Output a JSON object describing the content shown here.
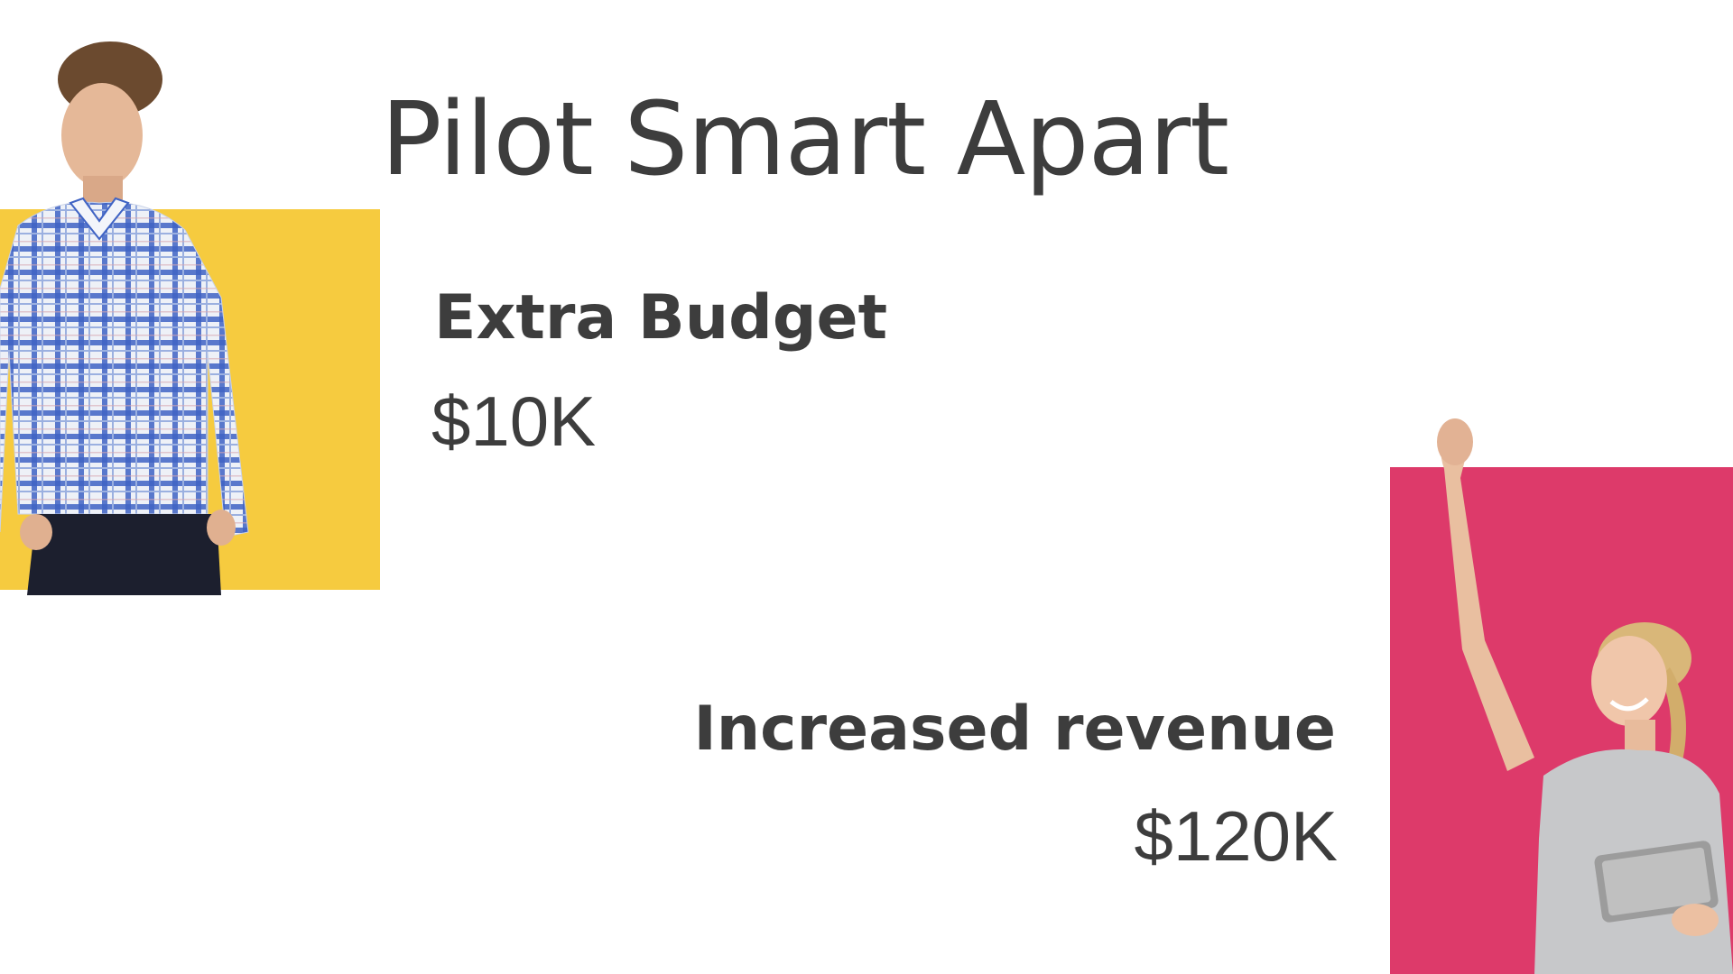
{
  "slide": {
    "title": "Pilot Smart Apart",
    "budget": {
      "label": "Extra Budget",
      "value": "$10K"
    },
    "revenue": {
      "label": "Increased revenue",
      "value": "$120K"
    }
  },
  "colors": {
    "text": "#3d3d3d",
    "yellow_panel": "#f6cb3f",
    "pink_panel": "#dd3a6a",
    "background": "#ffffff"
  },
  "images": {
    "left_person": "man-in-plaid-shirt-photo",
    "right_person": "cheering-woman-with-tablet-photo"
  }
}
